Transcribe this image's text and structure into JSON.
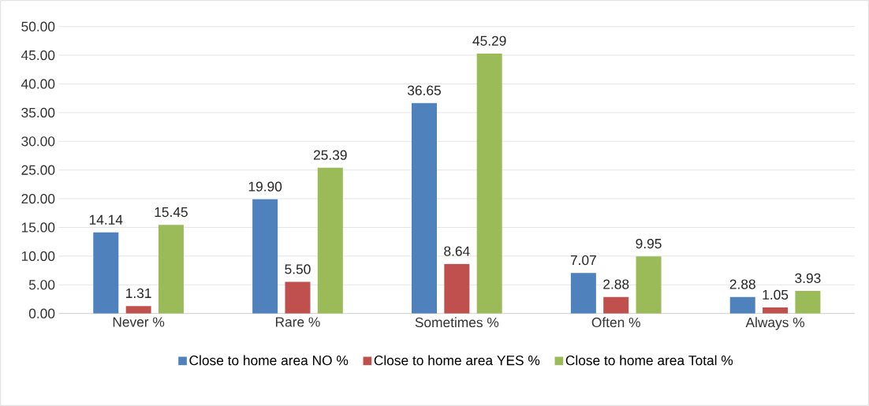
{
  "chart_data": {
    "type": "bar",
    "categories": [
      "Never %",
      "Rare %",
      "Sometimes %",
      "Often %",
      "Always %"
    ],
    "series": [
      {
        "name": "Close to home area NO %",
        "color": "#4f81bd",
        "values": [
          14.14,
          19.9,
          36.65,
          7.07,
          2.88
        ],
        "value_labels": [
          "14.14",
          "19.90",
          "36.65",
          "7.07",
          "2.88"
        ]
      },
      {
        "name": "Close to home area YES %",
        "color": "#c0504d",
        "values": [
          1.31,
          5.5,
          8.64,
          2.88,
          1.05
        ],
        "value_labels": [
          "1.31",
          "5.50",
          "8.64",
          "2.88",
          "1.05"
        ]
      },
      {
        "name": "Close to home area Total %",
        "color": "#9bbb59",
        "values": [
          15.45,
          25.39,
          45.29,
          9.95,
          3.93
        ],
        "value_labels": [
          "15.45",
          "25.39",
          "45.29",
          "9.95",
          "3.93"
        ]
      }
    ],
    "ylim": [
      0,
      50
    ],
    "yticks": [
      {
        "value": 0,
        "label": "0.00"
      },
      {
        "value": 5,
        "label": "5.00"
      },
      {
        "value": 10,
        "label": "10.00"
      },
      {
        "value": 15,
        "label": "15.00"
      },
      {
        "value": 20,
        "label": "20.00"
      },
      {
        "value": 25,
        "label": "25.00"
      },
      {
        "value": 30,
        "label": "30.00"
      },
      {
        "value": 35,
        "label": "35.00"
      },
      {
        "value": 40,
        "label": "40.00"
      },
      {
        "value": 45,
        "label": "45.00"
      },
      {
        "value": 50,
        "label": "50.00"
      }
    ],
    "grid": "y",
    "legend": "bottom"
  }
}
